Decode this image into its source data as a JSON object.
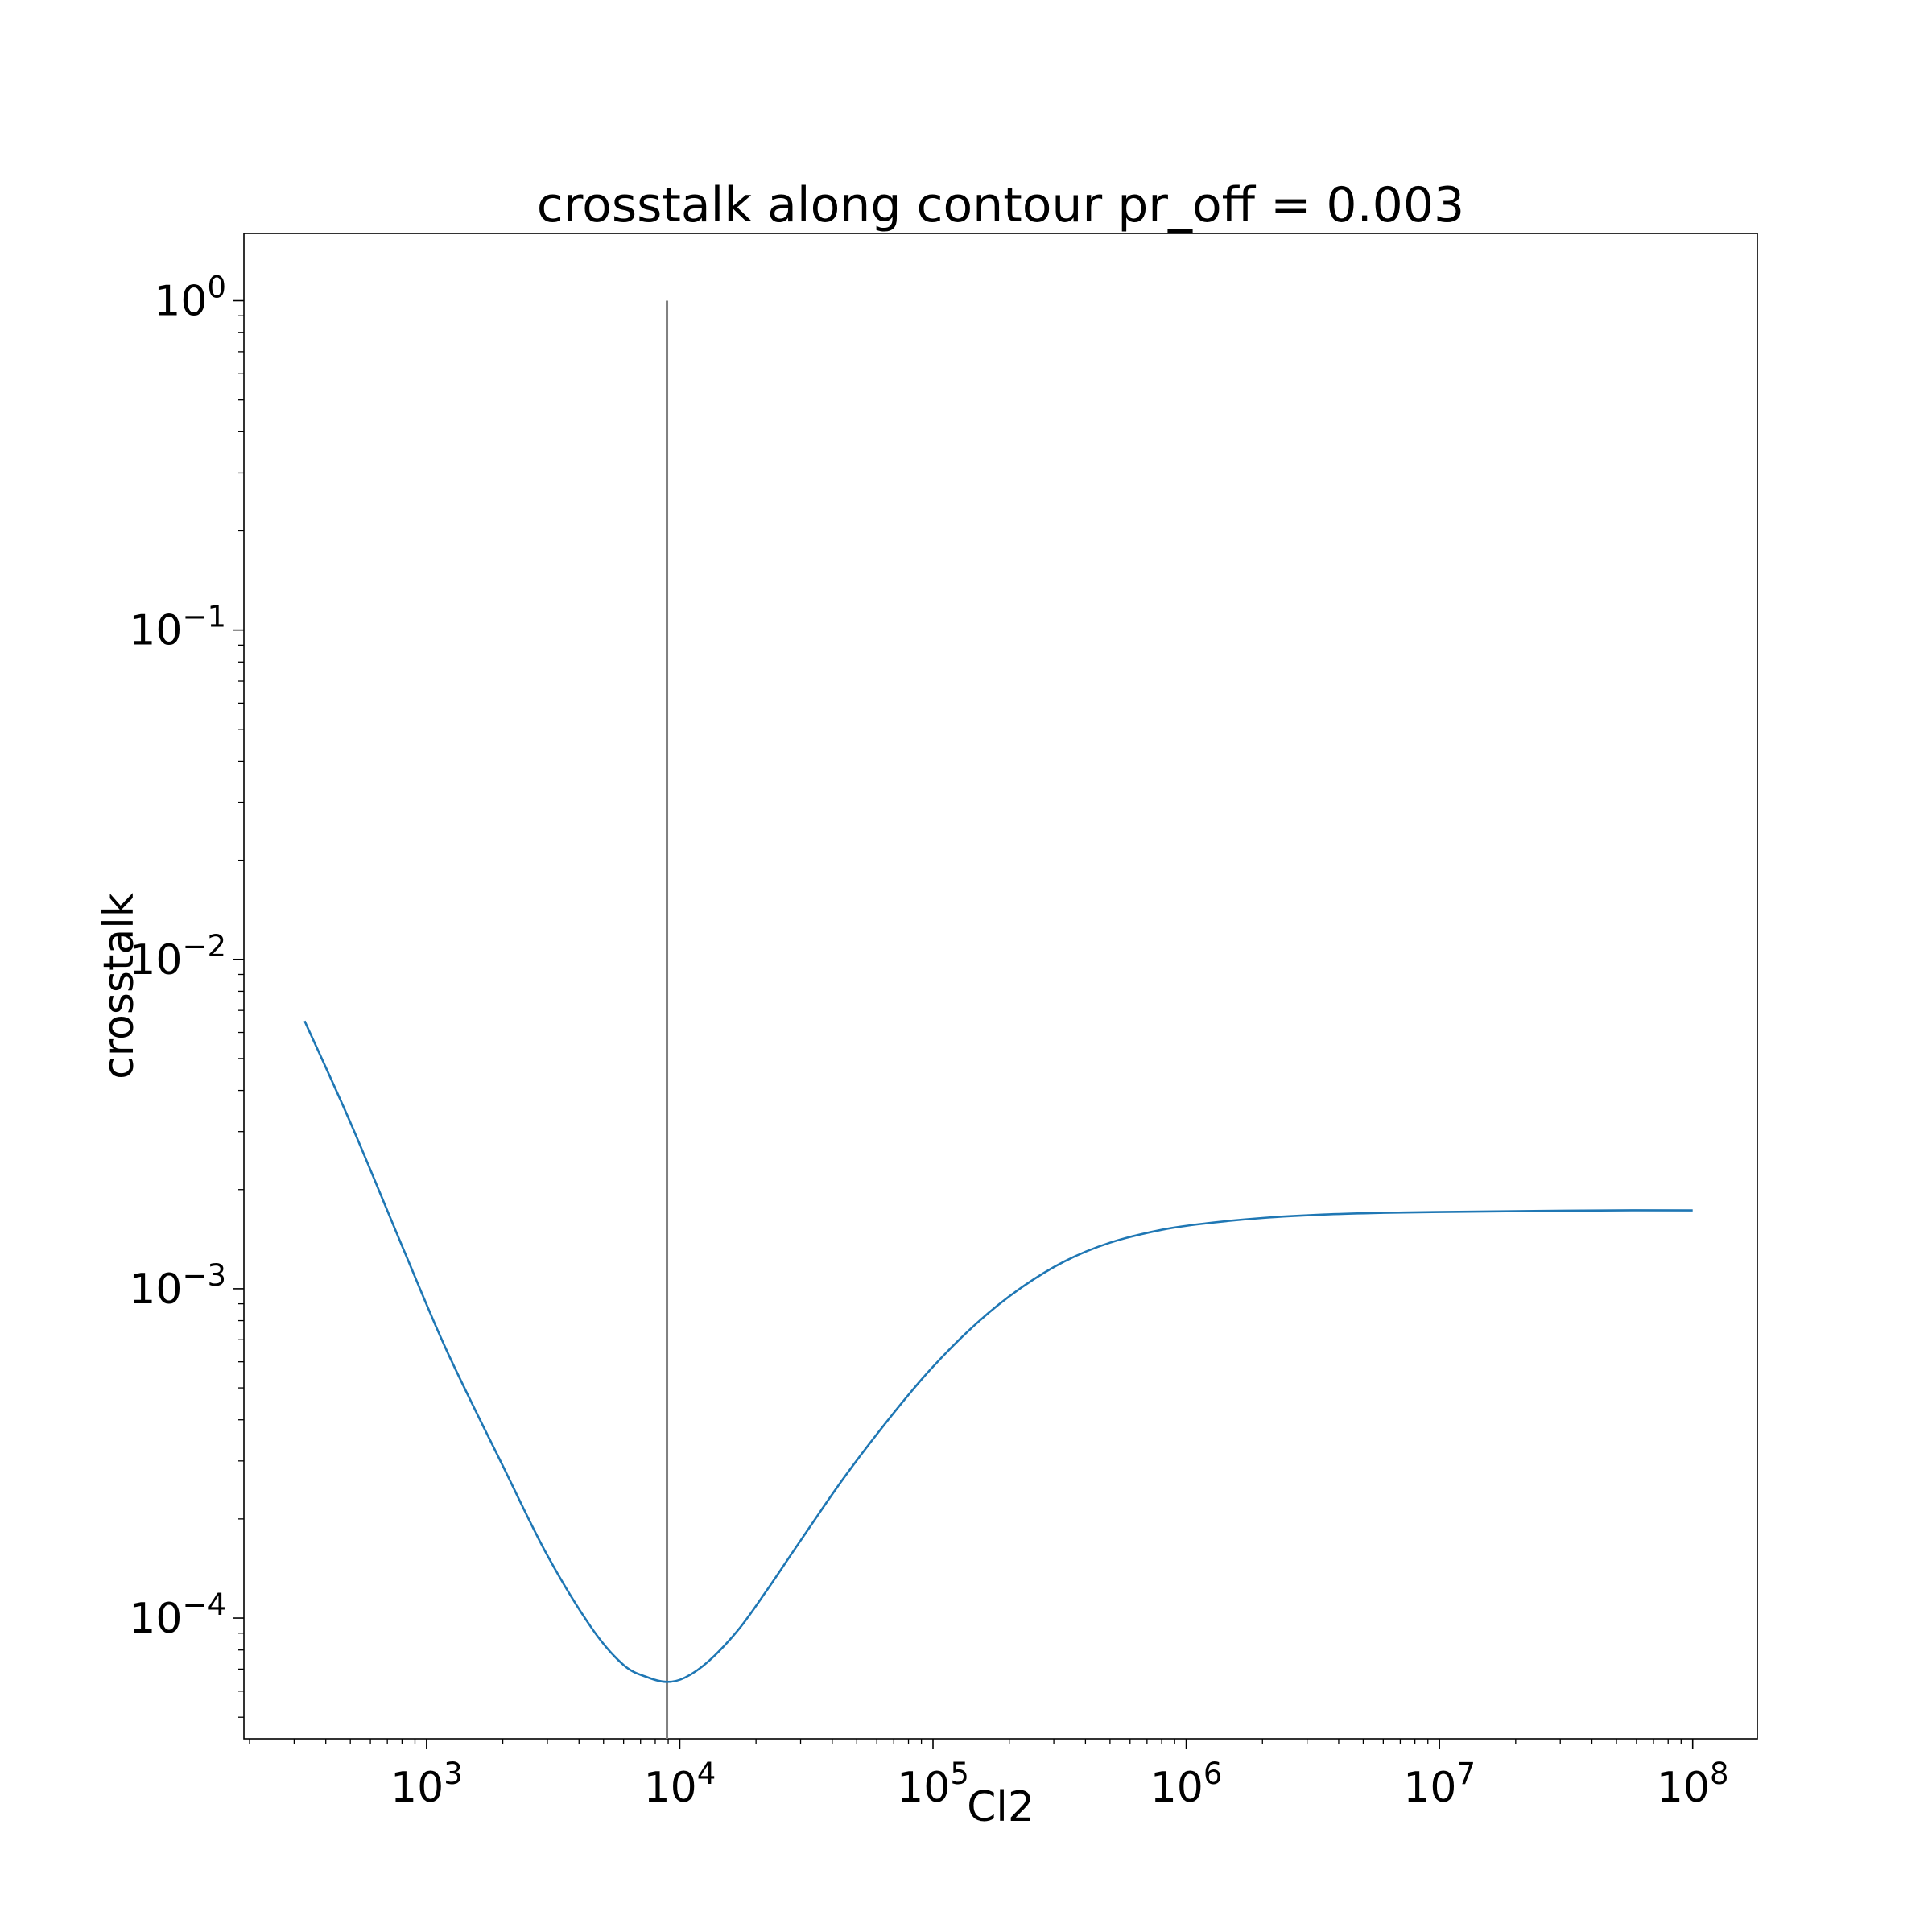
{
  "chart_data": {
    "type": "line",
    "title": "crosstalk along contour pr_off = 0.003",
    "xlabel": "Cl2",
    "ylabel": "crosstalk",
    "xscale": "log",
    "yscale": "log",
    "xlim": [
      190,
      180000000
    ],
    "ylim": [
      4.3e-05,
      1.6
    ],
    "grid": false,
    "legend": "none",
    "x_ticks": [
      {
        "value": 1000,
        "base": "10",
        "exp": "3"
      },
      {
        "value": 10000,
        "base": "10",
        "exp": "4"
      },
      {
        "value": 100000,
        "base": "10",
        "exp": "5"
      },
      {
        "value": 1000000,
        "base": "10",
        "exp": "6"
      },
      {
        "value": 10000000,
        "base": "10",
        "exp": "7"
      },
      {
        "value": 100000000,
        "base": "10",
        "exp": "8"
      }
    ],
    "y_ticks": [
      {
        "value": 0.0001,
        "base": "10",
        "exp": "−4"
      },
      {
        "value": 0.001,
        "base": "10",
        "exp": "−3"
      },
      {
        "value": 0.01,
        "base": "10",
        "exp": "−2"
      },
      {
        "value": 0.1,
        "base": "10",
        "exp": "−1"
      },
      {
        "value": 1,
        "base": "10",
        "exp": "0"
      }
    ],
    "vline": {
      "x": 8900,
      "y_range": [
        4.3e-05,
        1
      ],
      "color": "#808080"
    },
    "series": [
      {
        "color": "#1f77b4",
        "x": [
          330,
          500,
          800,
          1200,
          2000,
          3000,
          4500,
          6000,
          7500,
          8900,
          10500,
          13000,
          17000,
          22000,
          30000,
          45000,
          70000,
          100000,
          150000,
          220000,
          330000,
          500000,
          800000,
          1200000,
          2000000,
          3500000,
          6000000,
          10000000,
          20000000,
          50000000,
          100000000
        ],
        "y": [
          0.0065,
          0.0032,
          0.00135,
          0.00065,
          0.00029,
          0.000155,
          9.3e-05,
          7.2e-05,
          6.6e-05,
          6.4e-05,
          6.6e-05,
          7.4e-05,
          9.2e-05,
          0.000121,
          0.000172,
          0.00027,
          0.00042,
          0.00058,
          0.00079,
          0.001,
          0.00121,
          0.00138,
          0.00151,
          0.00158,
          0.00164,
          0.00168,
          0.0017,
          0.00171,
          0.00172,
          0.00173,
          0.00173
        ]
      }
    ]
  }
}
